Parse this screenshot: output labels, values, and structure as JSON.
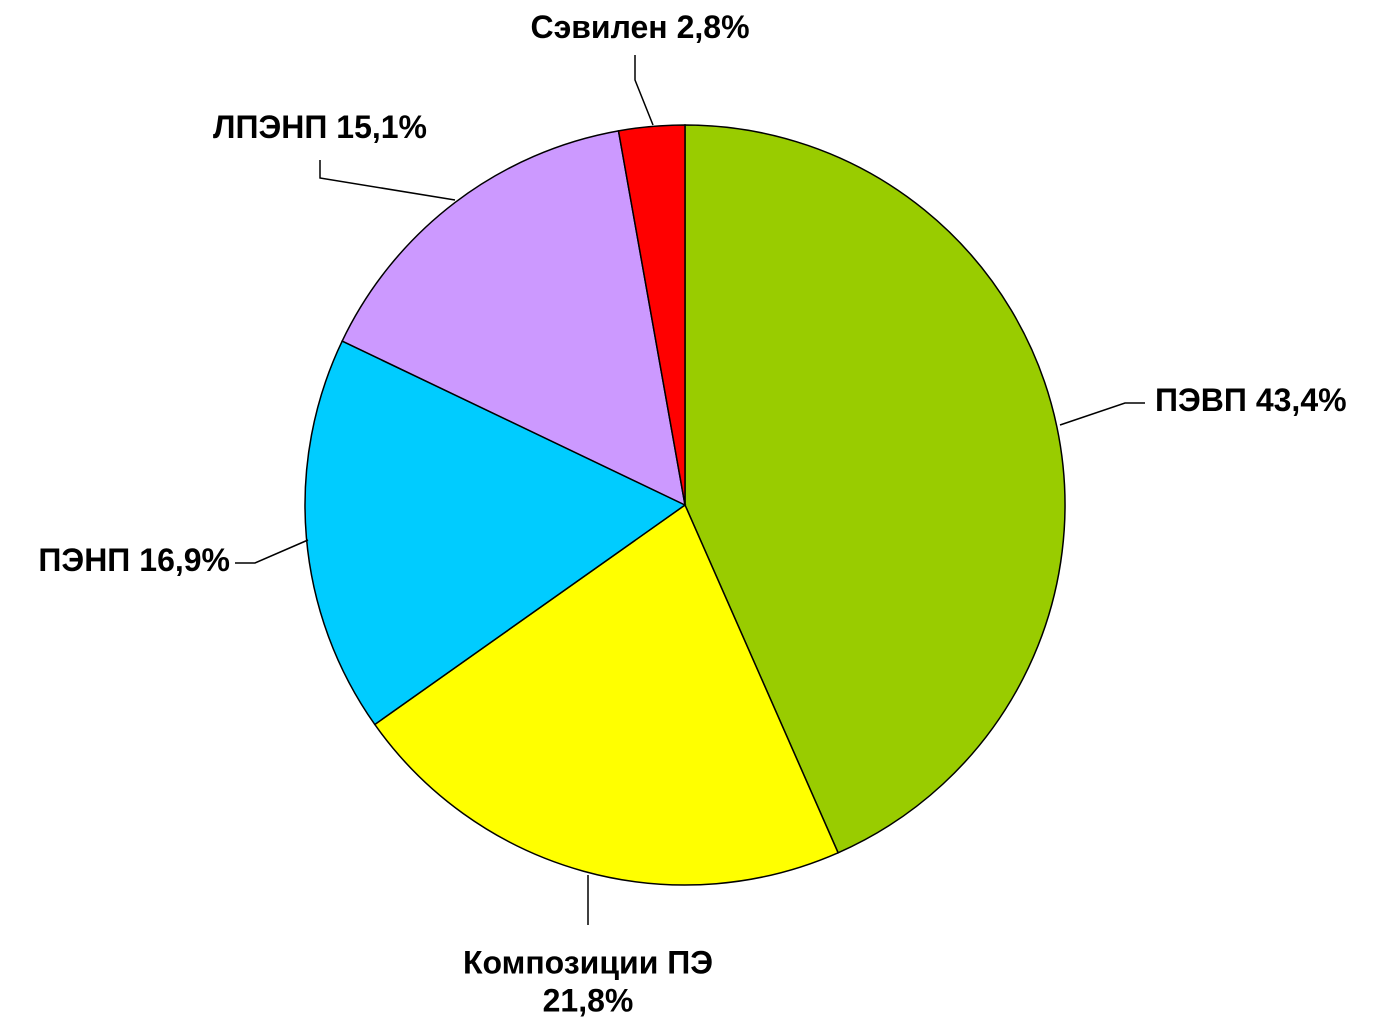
{
  "chart_data": {
    "type": "pie",
    "categories": [
      "ПЭВП",
      "Композиции ПЭ",
      "ПЭНП",
      "ЛПЭНП",
      "Сэвилен"
    ],
    "values": [
      43.4,
      21.8,
      16.9,
      15.1,
      2.8
    ],
    "value_labels": [
      "43,4%",
      "21,8%",
      "16,9%",
      "15,1%",
      "2,8%"
    ],
    "colors": [
      "#99cc00",
      "#ffff00",
      "#00ccff",
      "#cc99ff",
      "#ff0000"
    ]
  }
}
